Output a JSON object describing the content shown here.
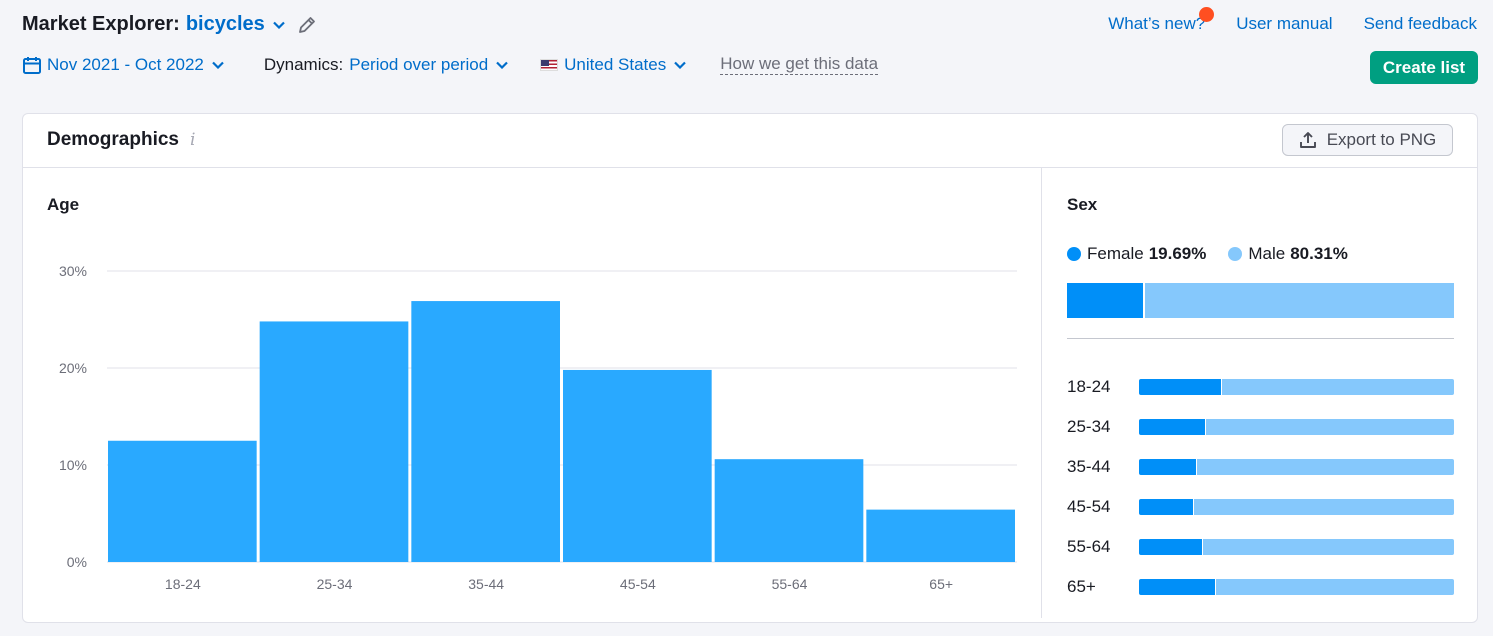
{
  "header": {
    "title_prefix": "Market Explorer:",
    "keyword": "bicycles",
    "links": {
      "whats_new": "What’s new?",
      "manual": "User manual",
      "feedback": "Send feedback"
    },
    "date_range": "Nov 2021 - Oct 2022",
    "dynamics_label": "Dynamics:",
    "dynamics_value": "Period over period",
    "country": "United States",
    "how_data": "How we get this data",
    "create_list": "Create list"
  },
  "card": {
    "title": "Demographics",
    "info": "i",
    "export": "Export to PNG"
  },
  "age": {
    "title": "Age"
  },
  "sex": {
    "title": "Sex",
    "female_label": "Female",
    "female_value": "19.69%",
    "male_label": "Male",
    "male_value": "80.31%",
    "female_share": 19.69,
    "rows": [
      {
        "label": "18-24",
        "female_pct": 26
      },
      {
        "label": "25-34",
        "female_pct": 21
      },
      {
        "label": "35-44",
        "female_pct": 18
      },
      {
        "label": "45-54",
        "female_pct": 17
      },
      {
        "label": "55-64",
        "female_pct": 20
      },
      {
        "label": "65+",
        "female_pct": 24
      }
    ]
  },
  "colors": {
    "female": "#008ff8",
    "male": "#85c8fc",
    "bar": "#29a9ff",
    "accent": "#006dca",
    "green": "#009f81"
  },
  "chart_data": {
    "type": "bar",
    "title": "Age",
    "categories": [
      "18-24",
      "25-34",
      "35-44",
      "45-54",
      "55-64",
      "65+"
    ],
    "values": [
      12.5,
      24.8,
      26.9,
      19.8,
      10.6,
      5.4
    ],
    "yticks": [
      "0%",
      "10%",
      "20%",
      "30%"
    ],
    "ylim": [
      0,
      30
    ],
    "grid": true
  }
}
